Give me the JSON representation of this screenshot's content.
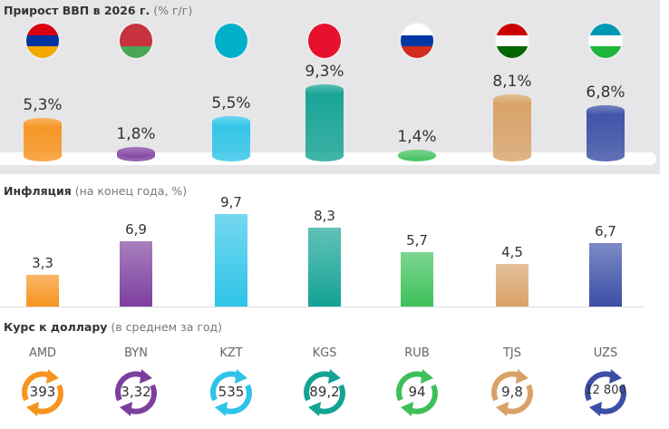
{
  "chart_data": [
    {
      "type": "bar",
      "title": "Прирост ВВП в 2026 г.",
      "subtitle": "(% г/г)",
      "categories": [
        "Армения",
        "Беларусь",
        "Казахстан",
        "Кыргызстан",
        "Россия",
        "Таджикистан",
        "Узбекистан"
      ],
      "flags": [
        "armenia-flag",
        "belarus-flag",
        "kazakhstan-flag",
        "kyrgyzstan-flag",
        "russia-flag",
        "tajikistan-flag",
        "uzbekistan-flag"
      ],
      "values": [
        5.3,
        1.8,
        5.5,
        9.3,
        1.4,
        8.1,
        6.8
      ],
      "labels": [
        "5,3%",
        "1,8%",
        "5,5%",
        "9,3%",
        "1,4%",
        "8,1%",
        "6,8%"
      ]
    },
    {
      "type": "bar",
      "title": "Инфляция",
      "subtitle": "(на конец года, %)",
      "values": [
        3.3,
        6.9,
        9.7,
        8.3,
        5.7,
        4.5,
        6.7
      ],
      "labels": [
        "3,3",
        "6,9",
        "9,7",
        "8,3",
        "5,7",
        "4,5",
        "6,7"
      ]
    },
    {
      "type": "table",
      "title": "Курс к доллару",
      "subtitle": "(в среднем за год)",
      "codes": [
        "AMD",
        "BYN",
        "KZT",
        "KGS",
        "RUB",
        "TJS",
        "UZS"
      ],
      "values": [
        "393",
        "3,32",
        "535",
        "89,2",
        "94",
        "9,8",
        "12 800"
      ]
    }
  ],
  "colors": [
    "#f7931e",
    "#7d3f9e",
    "#2ec4e8",
    "#13a394",
    "#3dc05a",
    "#d8a266",
    "#3b4fa6"
  ]
}
